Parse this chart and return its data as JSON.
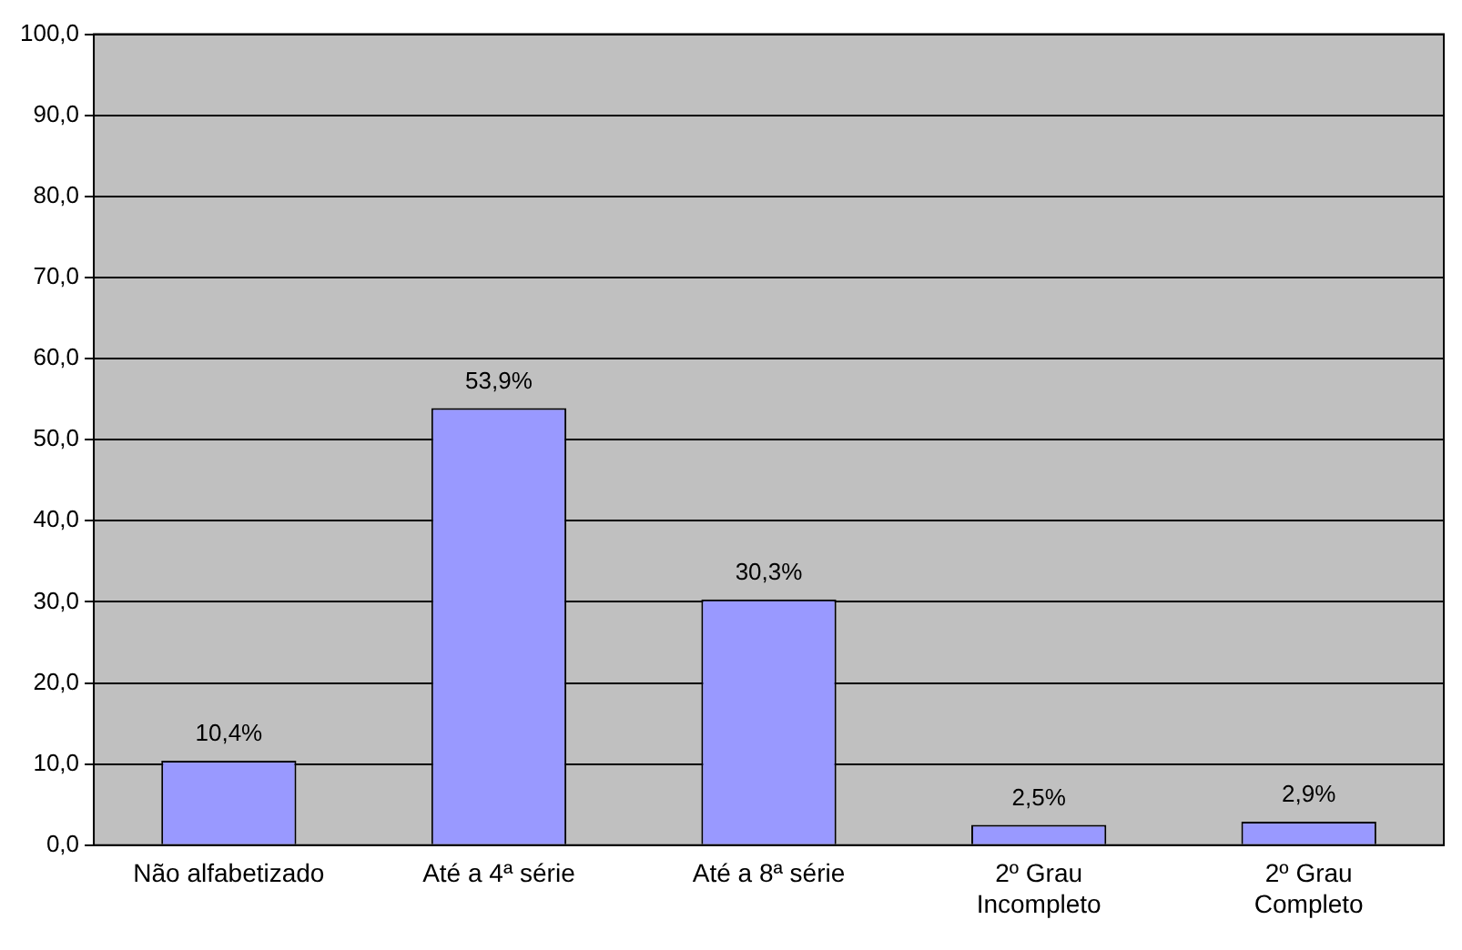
{
  "chart_data": {
    "type": "bar",
    "categories": [
      "Não alfabetizado",
      "Até a 4ª série",
      "Até a 8ª série",
      "2º Grau Incompleto",
      "2º Grau Completo"
    ],
    "values": [
      10.4,
      53.9,
      30.3,
      2.5,
      2.9
    ],
    "value_labels": [
      "10,4%",
      "53,9%",
      "30,3%",
      "2,5%",
      "2,9%"
    ],
    "color": "#9999ff",
    "ylim": [
      0,
      100
    ],
    "yticks": [
      {
        "value": 0,
        "label": "0,0"
      },
      {
        "value": 10,
        "label": "10,0"
      },
      {
        "value": 20,
        "label": "20,0"
      },
      {
        "value": 30,
        "label": "30,0"
      },
      {
        "value": 40,
        "label": "40,0"
      },
      {
        "value": 50,
        "label": "50,0"
      },
      {
        "value": 60,
        "label": "60,0"
      },
      {
        "value": 70,
        "label": "70,0"
      },
      {
        "value": 80,
        "label": "80,0"
      },
      {
        "value": 90,
        "label": "90,0"
      },
      {
        "value": 100,
        "label": "100,0"
      }
    ],
    "grid": "y",
    "legend": false
  }
}
